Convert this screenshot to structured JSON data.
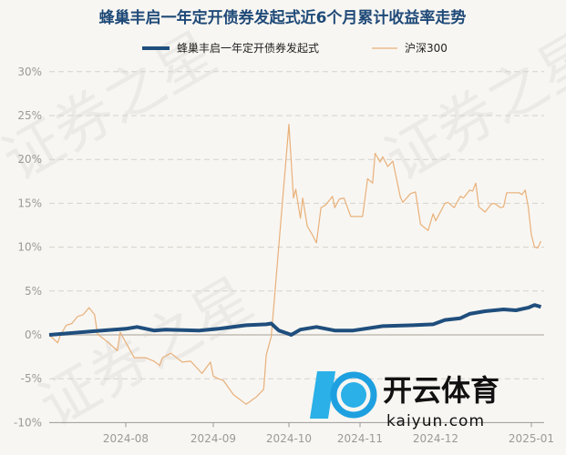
{
  "chart_data": {
    "type": "line",
    "title": "蜂巢丰启一年定开债券发起式近6个月累计收益率走势",
    "xlabel": "",
    "ylabel": "",
    "ylim": [
      -10,
      30
    ],
    "yticks": [
      -10,
      -5,
      0,
      5,
      10,
      15,
      20,
      25,
      30
    ],
    "ytick_labels": [
      "-10%",
      "-5%",
      "0%",
      "5%",
      "10%",
      "15%",
      "20%",
      "25%",
      "30%"
    ],
    "xtick_labels": [
      "2024-08",
      "2024-09",
      "2024-10",
      "2024-11",
      "2024-12",
      "2025-01"
    ],
    "xticks": [
      "2024-08-01",
      "2024-09-01",
      "2024-10-01",
      "2024-11-01",
      "2024-12-01",
      "2025-01-01"
    ],
    "grid": "horizontal dashed",
    "legend": "top-center",
    "series": [
      {
        "name": "蜂巢丰启一年定开债券发起式",
        "color": "#1f4e7d",
        "x": [
          "2024-07-05",
          "2024-07-20",
          "2024-08-01",
          "2024-08-05",
          "2024-08-11",
          "2024-08-15",
          "2024-08-27",
          "2024-09-03",
          "2024-09-14",
          "2024-09-22",
          "2024-09-24",
          "2024-09-27",
          "2024-10-01",
          "2024-10-02",
          "2024-10-06",
          "2024-10-13",
          "2024-10-21",
          "2024-10-29",
          "2024-11-10",
          "2024-11-22",
          "2024-11-30",
          "2024-12-04",
          "2024-12-09",
          "2024-12-12",
          "2024-12-17",
          "2024-12-23",
          "2024-12-27",
          "2024-12-31",
          "2025-01-02",
          "2025-01-04"
        ],
        "values": [
          0,
          0.4,
          0.7,
          0.9,
          0.5,
          0.6,
          0.5,
          0.7,
          1.1,
          1.2,
          1.3,
          0.5,
          0.1,
          0,
          0.6,
          0.9,
          0.5,
          0.5,
          1.0,
          1.1,
          1.2,
          1.7,
          1.9,
          2.4,
          2.7,
          2.9,
          2.8,
          3.1,
          3.4,
          3.2
        ]
      },
      {
        "name": "沪深300",
        "color": "#e8b07a",
        "x": [
          "2024-07-05",
          "2024-07-08",
          "2024-07-09",
          "2024-07-11",
          "2024-07-13",
          "2024-07-15",
          "2024-07-17",
          "2024-07-19",
          "2024-07-21",
          "2024-07-22",
          "2024-07-26",
          "2024-07-29",
          "2024-07-30",
          "2024-08-04",
          "2024-08-08",
          "2024-08-11",
          "2024-08-13",
          "2024-08-14",
          "2024-08-17",
          "2024-08-21",
          "2024-08-24",
          "2024-08-28",
          "2024-08-31",
          "2024-09-01",
          "2024-09-03",
          "2024-09-05",
          "2024-09-09",
          "2024-09-14",
          "2024-09-18",
          "2024-09-21",
          "2024-09-22",
          "2024-09-24",
          "2024-10-01",
          "2024-10-03",
          "2024-10-04",
          "2024-10-06",
          "2024-10-07",
          "2024-10-09",
          "2024-10-11",
          "2024-10-13",
          "2024-10-15",
          "2024-10-17",
          "2024-10-20",
          "2024-10-21",
          "2024-10-23",
          "2024-10-25",
          "2024-10-28",
          "2024-11-02",
          "2024-11-04",
          "2024-11-06",
          "2024-11-07",
          "2024-11-09",
          "2024-11-10",
          "2024-11-12",
          "2024-11-14",
          "2024-11-17",
          "2024-11-18",
          "2024-11-21",
          "2024-11-23",
          "2024-11-25",
          "2024-11-28",
          "2024-11-30",
          "2024-12-01",
          "2024-12-04",
          "2024-12-05",
          "2024-12-07",
          "2024-12-09",
          "2024-12-10",
          "2024-12-12",
          "2024-12-13",
          "2024-12-14",
          "2024-12-15",
          "2024-12-17",
          "2024-12-19",
          "2024-12-20",
          "2024-12-22",
          "2024-12-23",
          "2024-12-24",
          "2024-12-28",
          "2024-12-29",
          "2024-12-30",
          "2024-12-31",
          "2025-01-01",
          "2025-01-02",
          "2025-01-03",
          "2025-01-04"
        ],
        "values": [
          0,
          -0.9,
          0,
          1.1,
          1.3,
          2.1,
          2.3,
          3.1,
          2.3,
          0.1,
          -0.9,
          -1.8,
          0.3,
          -2.6,
          -2.6,
          -3,
          -3.5,
          -2.6,
          -2.1,
          -3.1,
          -3,
          -4.4,
          -3.1,
          -4.7,
          -5,
          -5.2,
          -6.8,
          -7.9,
          -7.1,
          -6.2,
          -2.3,
          -0.2,
          24,
          15.6,
          16.6,
          13.3,
          15.6,
          12.4,
          11.5,
          10.5,
          14.5,
          14.8,
          15.8,
          14.5,
          15.5,
          15.6,
          13.5,
          13.5,
          17.8,
          17.3,
          20.7,
          19.7,
          20.3,
          19.2,
          19.8,
          15.7,
          15.1,
          16.1,
          16.3,
          12.6,
          11.9,
          13.8,
          13,
          15,
          15.1,
          14.5,
          15.8,
          15.6,
          16.5,
          16.4,
          17.3,
          14.6,
          14,
          14.9,
          15,
          14.5,
          14.6,
          16.2,
          16.2,
          16,
          16.5,
          14.6,
          11.4,
          10,
          9.9,
          10.7
        ]
      }
    ]
  },
  "watermark": {
    "text": "证券之星"
  },
  "logo": {
    "name": "开云体育",
    "domain": "kaiyun.com"
  }
}
